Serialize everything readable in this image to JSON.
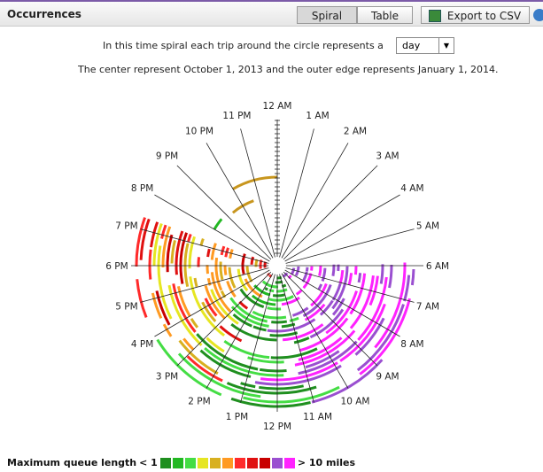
{
  "header": {
    "title": "Occurrences",
    "buttons": [
      "Spiral",
      "Table",
      "Export to CSV"
    ]
  },
  "description": {
    "prompt": "In this time spiral each trip around the circle represents a",
    "period": "day",
    "range_note": "The center represent October 1, 2013 and the outer edge represents January 1, 2014."
  },
  "spiral": {
    "hour_labels": [
      "12 AM",
      "1 AM",
      "2 AM",
      "3 AM",
      "4 AM",
      "5 AM",
      "6 AM",
      "7 AM",
      "8 AM",
      "9 AM",
      "10 AM",
      "11 AM",
      "12 PM",
      "1 PM",
      "2 PM",
      "3 PM",
      "4 PM",
      "5 PM",
      "6 PM",
      "7 PM",
      "8 PM",
      "9 PM",
      "10 PM",
      "11 PM"
    ]
  },
  "legend": {
    "title": "Maximum queue length",
    "low": "< 1",
    "high": "> 10 miles",
    "colors": [
      "#1f8f1f",
      "#22b822",
      "#44dd44",
      "#e6e622",
      "#d8b020",
      "#ff9a22",
      "#ff2a2a",
      "#e01010",
      "#c80000",
      "#9a4fd0",
      "#ff22ff"
    ]
  }
}
